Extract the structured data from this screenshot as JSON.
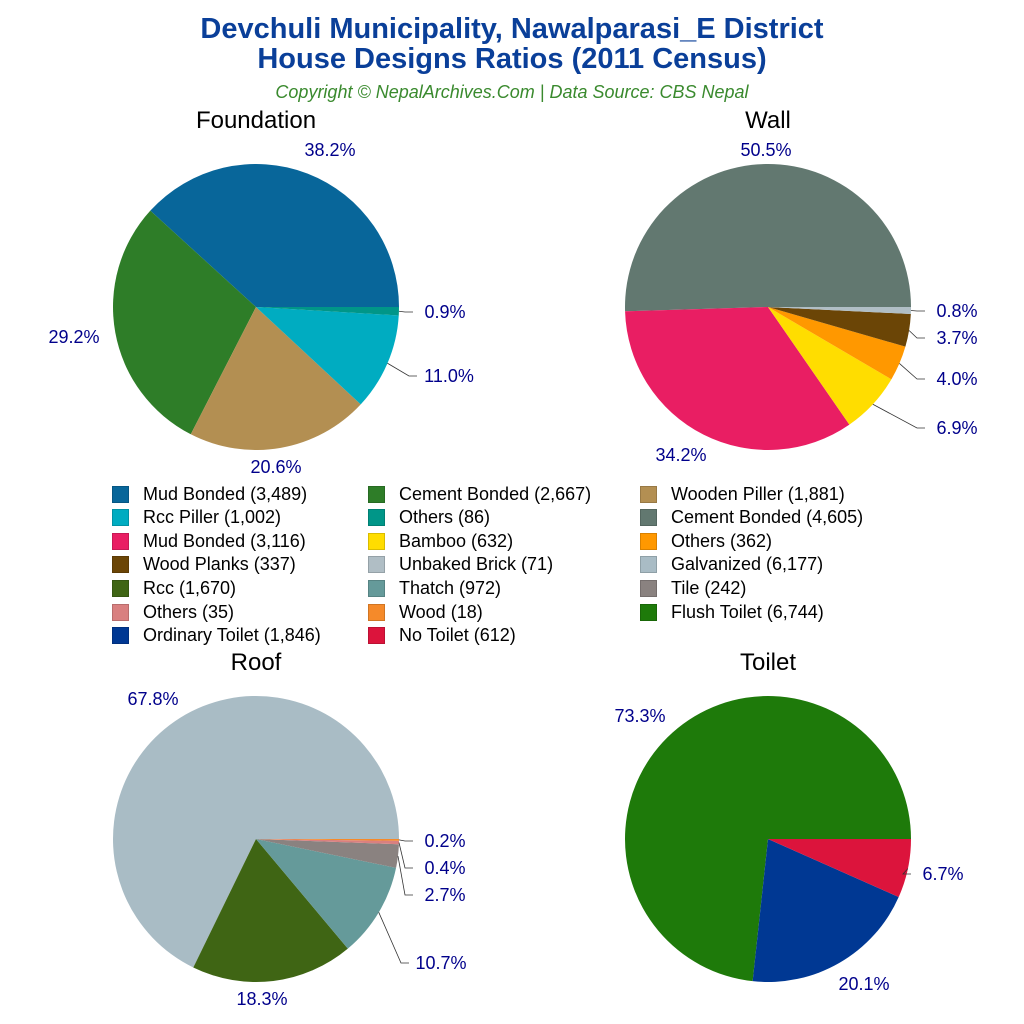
{
  "title_line1": "Devchuli Municipality, Nawalparasi_E District",
  "title_line2": "House Designs Ratios (2011 Census)",
  "subtitle": "Copyright © NepalArchives.Com | Data Source: CBS Nepal",
  "chart_data": [
    {
      "type": "pie",
      "title": "Foundation",
      "slices": [
        {
          "name": "Mud Bonded",
          "value": 3489,
          "label": "38.2%",
          "color": "#08669a"
        },
        {
          "name": "Cement Bonded",
          "value": 2667,
          "label": "29.2%",
          "color": "#2e7d28"
        },
        {
          "name": "Wooden Piller",
          "value": 1881,
          "label": "20.6%",
          "color": "#b38f52"
        },
        {
          "name": "Rcc Piller",
          "value": 1002,
          "label": "11.0%",
          "color": "#00acc1"
        },
        {
          "name": "Others",
          "value": 86,
          "label": "0.9%",
          "color": "#009688"
        }
      ]
    },
    {
      "type": "pie",
      "title": "Wall",
      "slices": [
        {
          "name": "Cement Bonded",
          "value": 4605,
          "label": "50.5%",
          "color": "#627870"
        },
        {
          "name": "Mud Bonded",
          "value": 3116,
          "label": "34.2%",
          "color": "#e91e63"
        },
        {
          "name": "Bamboo",
          "value": 632,
          "label": "6.9%",
          "color": "#ffdd00"
        },
        {
          "name": "Others",
          "value": 362,
          "label": "4.0%",
          "color": "#ff9800"
        },
        {
          "name": "Wood Planks",
          "value": 337,
          "label": "3.7%",
          "color": "#6b4506"
        },
        {
          "name": "Unbaked Brick",
          "value": 71,
          "label": "0.8%",
          "color": "#b0bec5"
        }
      ]
    },
    {
      "type": "pie",
      "title": "Roof",
      "slices": [
        {
          "name": "Galvanized",
          "value": 6177,
          "label": "67.8%",
          "color": "#a9bcc5"
        },
        {
          "name": "Rcc",
          "value": 1670,
          "label": "18.3%",
          "color": "#3f6514"
        },
        {
          "name": "Thatch",
          "value": 972,
          "label": "10.7%",
          "color": "#659a9a"
        },
        {
          "name": "Tile",
          "value": 242,
          "label": "2.7%",
          "color": "#8a8280"
        },
        {
          "name": "Others",
          "value": 35,
          "label": "0.4%",
          "color": "#d98080"
        },
        {
          "name": "Wood",
          "value": 18,
          "label": "0.2%",
          "color": "#f58a2a"
        }
      ]
    },
    {
      "type": "pie",
      "title": "Toilet",
      "slices": [
        {
          "name": "Flush Toilet",
          "value": 6744,
          "label": "73.3%",
          "color": "#1e7a0a"
        },
        {
          "name": "Ordinary Toilet",
          "value": 1846,
          "label": "20.1%",
          "color": "#003893"
        },
        {
          "name": "No Toilet",
          "value": 612,
          "label": "6.7%",
          "color": "#dc143c"
        }
      ]
    }
  ],
  "legend": [
    {
      "text": "Mud Bonded (3,489)",
      "color": "#08669a"
    },
    {
      "text": "Cement Bonded (2,667)",
      "color": "#2e7d28"
    },
    {
      "text": "Wooden Piller (1,881)",
      "color": "#b38f52"
    },
    {
      "text": "Rcc Piller (1,002)",
      "color": "#00acc1"
    },
    {
      "text": "Others (86)",
      "color": "#009688"
    },
    {
      "text": "Cement Bonded (4,605)",
      "color": "#627870"
    },
    {
      "text": "Mud Bonded (3,116)",
      "color": "#e91e63"
    },
    {
      "text": "Bamboo (632)",
      "color": "#ffdd00"
    },
    {
      "text": "Others (362)",
      "color": "#ff9800"
    },
    {
      "text": "Wood Planks (337)",
      "color": "#6b4506"
    },
    {
      "text": "Unbaked Brick (71)",
      "color": "#b0bec5"
    },
    {
      "text": "Galvanized (6,177)",
      "color": "#a9bcc5"
    },
    {
      "text": "Rcc (1,670)",
      "color": "#3f6514"
    },
    {
      "text": "Thatch (972)",
      "color": "#659a9a"
    },
    {
      "text": "Tile (242)",
      "color": "#8a8280"
    },
    {
      "text": "Others (35)",
      "color": "#d98080"
    },
    {
      "text": "Wood (18)",
      "color": "#f58a2a"
    },
    {
      "text": "Flush Toilet (6,744)",
      "color": "#1e7a0a"
    },
    {
      "text": "Ordinary Toilet (1,846)",
      "color": "#003893"
    },
    {
      "text": "No Toilet (612)",
      "color": "#dc143c"
    }
  ]
}
